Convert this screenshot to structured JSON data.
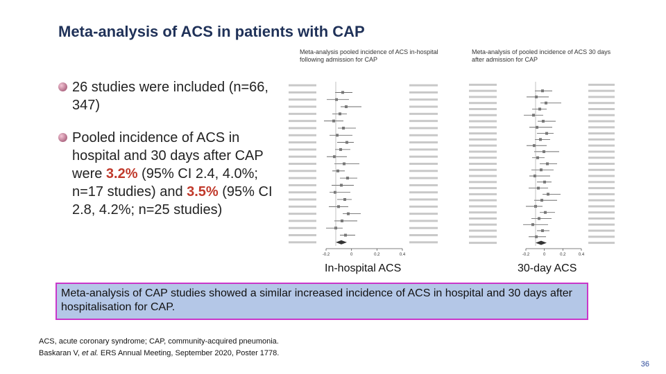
{
  "slide": {
    "title": "Meta-analysis of ACS in patients with CAP",
    "bullets": [
      {
        "segments": [
          "26 studies were included (n=66, 347)"
        ]
      },
      {
        "segments": [
          "Pooled incidence of ACS in hospital and 30 days after CAP were ",
          "3.2%",
          " (95% CI 2.4, 4.0%; n=17 studies) and ",
          "3.5%",
          " (95% CI 2.8, 4.2%; n=25 studies)"
        ]
      }
    ],
    "forest_plots": [
      {
        "caption": "Meta-analysis pooled incidence of ACS in-hospital following admission for CAP",
        "axis_ticks": [
          "-0.2",
          "0",
          "0.2",
          "0.4"
        ],
        "label": "In-hospital ACS"
      },
      {
        "caption": "Meta-analysis of pooled incidence of ACS 30 days after admission for CAP",
        "axis_ticks": [
          "-0.2",
          "0",
          "0.2",
          "0.4"
        ],
        "label": "30-day ACS"
      }
    ],
    "conclusion": "Meta-analysis of CAP studies showed a similar increased incidence of ACS in hospital and 30 days after hospitalisation for CAP.",
    "footnote": {
      "line1": "ACS, acute coronary syndrome; CAP, community-acquired pneumonia.",
      "line2": [
        "Baskaran V, ",
        "et al.",
        " ERS Annual Meeting, September 2020, Poster 1778."
      ]
    },
    "page_number": "36"
  }
}
